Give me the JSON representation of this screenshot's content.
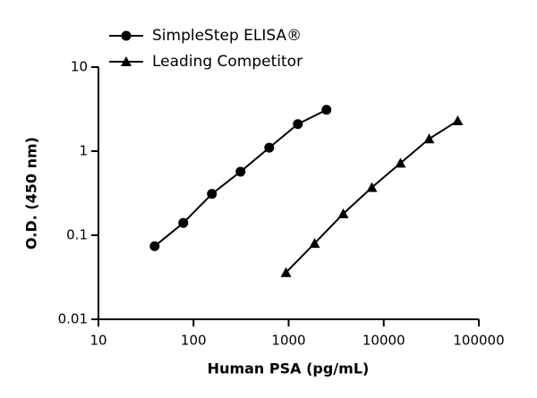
{
  "chart_data": {
    "type": "line",
    "x_label": "Human PSA (pg/mL)",
    "y_label": "O.D. (450 nm)",
    "xscale": "log",
    "yscale": "log",
    "xlim": [
      10,
      100000
    ],
    "xticks": [
      10,
      100,
      1000,
      10000,
      100000
    ],
    "ylim": [
      0.01,
      10
    ],
    "yticks": [
      0.01,
      0.1,
      1,
      10
    ],
    "legend": "top-left",
    "series": [
      {
        "name": "SimpleStep ELISA®",
        "color": "#000000",
        "marker": "circle",
        "x": [
          39,
          78,
          156,
          312,
          625,
          1250,
          2500
        ],
        "values": [
          0.074,
          0.14,
          0.31,
          0.57,
          1.1,
          2.1,
          3.1
        ]
      },
      {
        "name": "Leading Competitor",
        "color": "#000000",
        "marker": "triangle",
        "x": [
          938,
          1875,
          3750,
          7500,
          15000,
          30000,
          60000
        ],
        "values": [
          0.036,
          0.08,
          0.18,
          0.37,
          0.72,
          1.4,
          2.3
        ]
      }
    ]
  }
}
